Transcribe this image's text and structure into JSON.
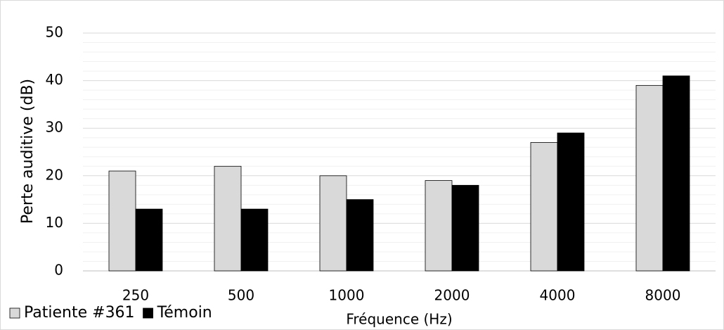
{
  "chart_data": {
    "type": "bar",
    "x_label": "Fréquence (Hz)",
    "y_label": "Perte auditive (dB)",
    "categories": [
      "250",
      "500",
      "1000",
      "2000",
      "4000",
      "8000"
    ],
    "series": [
      {
        "name": "Patiente #361",
        "color": "#d9d9d9",
        "values": [
          21,
          22,
          20,
          19,
          27,
          39
        ]
      },
      {
        "name": "Témoin",
        "color": "#000000",
        "values": [
          13,
          13,
          15,
          18,
          29,
          41
        ]
      }
    ],
    "ylim": [
      0,
      50
    ],
    "yticks": [
      0,
      10,
      20,
      30,
      40,
      50
    ],
    "grid": true,
    "minor_grid": true,
    "legend": "bottom-left"
  }
}
